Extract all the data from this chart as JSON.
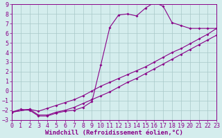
{
  "xlabel": "Windchill (Refroidissement éolien,°C)",
  "bg_color": "#d4eded",
  "grid_color": "#a8c8c8",
  "line_color": "#880088",
  "xlim": [
    0,
    23
  ],
  "ylim": [
    -3,
    9
  ],
  "xticks": [
    0,
    1,
    2,
    3,
    4,
    5,
    6,
    7,
    8,
    9,
    10,
    11,
    12,
    13,
    14,
    15,
    16,
    17,
    18,
    19,
    20,
    21,
    22,
    23
  ],
  "yticks": [
    -3,
    -2,
    -1,
    0,
    1,
    2,
    3,
    4,
    5,
    6,
    7,
    8,
    9
  ],
  "curve1_x": [
    0,
    1,
    2,
    3,
    4,
    5,
    6,
    7,
    8,
    9,
    10,
    11,
    12,
    13,
    14,
    15,
    16,
    17,
    18,
    19,
    20,
    21,
    22,
    23
  ],
  "curve1_y": [
    -2.2,
    -1.9,
    -2.0,
    -2.6,
    -2.6,
    -2.3,
    -2.1,
    -2.0,
    -1.7,
    -1.1,
    2.7,
    6.6,
    7.9,
    8.0,
    7.8,
    8.6,
    9.2,
    8.8,
    7.1,
    6.8,
    6.5,
    6.5,
    6.5,
    6.5
  ],
  "line2_x": [
    0,
    2,
    3,
    4,
    5,
    6,
    7,
    8,
    9,
    10,
    11,
    12,
    13,
    14,
    15,
    16,
    17,
    18,
    19,
    20,
    21,
    22,
    23
  ],
  "line2_y": [
    -2.2,
    -1.9,
    -2.1,
    -1.8,
    -1.5,
    -1.2,
    -0.9,
    -0.5,
    0.0,
    0.5,
    0.9,
    1.3,
    1.7,
    2.1,
    2.5,
    3.0,
    3.5,
    4.0,
    4.4,
    4.9,
    5.4,
    5.9,
    6.5
  ],
  "line3_x": [
    0,
    2,
    3,
    4,
    5,
    6,
    7,
    8,
    9,
    10,
    11,
    12,
    13,
    14,
    15,
    16,
    17,
    18,
    19,
    20,
    21,
    22,
    23
  ],
  "line3_y": [
    -2.2,
    -1.9,
    -2.5,
    -2.5,
    -2.2,
    -2.0,
    -1.7,
    -1.3,
    -0.9,
    -0.5,
    -0.1,
    0.4,
    0.9,
    1.3,
    1.8,
    2.3,
    2.8,
    3.3,
    3.8,
    4.3,
    4.8,
    5.3,
    5.8
  ],
  "fontsize": 6,
  "xlabel_fontsize": 6.5
}
